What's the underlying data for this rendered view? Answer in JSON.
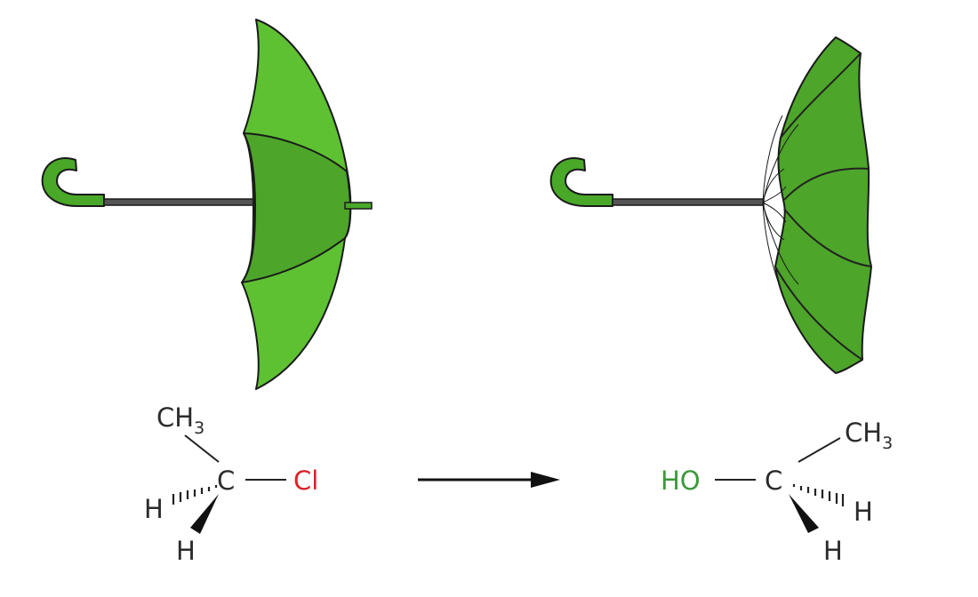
{
  "colors": {
    "canopy_light": "#5dc132",
    "canopy_dark": "#4da52a",
    "handle_green": "#49a828",
    "shaft": "#555555",
    "chlorine": "#d8232a",
    "hydroxyl": "#3c9a3c",
    "text": "#2b2b2b",
    "arrow": "#111111"
  },
  "reactant": {
    "methyl": "CH",
    "methyl_sub": "3",
    "center": "C",
    "leaving_group": "Cl",
    "hydrogen_hash": "H",
    "hydrogen_wedge": "H"
  },
  "product": {
    "nucleophile": "HO",
    "center": "C",
    "methyl": "CH",
    "methyl_sub": "3",
    "hydrogen_hash": "H",
    "hydrogen_wedge": "H"
  },
  "icons": {
    "left": "umbrella-open-icon",
    "right": "umbrella-inverted-icon",
    "arrow": "reaction-arrow-icon"
  }
}
